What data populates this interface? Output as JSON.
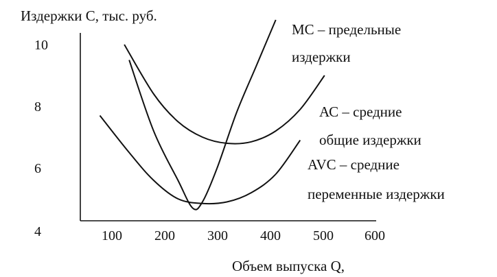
{
  "chart_data": {
    "type": "line",
    "ylabel": "Издержки С, тыс. руб.",
    "xlabel": "Объем выпуска Q,",
    "x_ticks": [
      "100",
      "200",
      "300",
      "400",
      "500",
      "600"
    ],
    "y_ticks": [
      "10",
      "8",
      "6",
      "4"
    ],
    "xlim": [
      0,
      600
    ],
    "ylim": [
      4,
      10
    ],
    "grid": false,
    "series": [
      {
        "name": "MC – предельные издержки",
        "label_lines": [
          "МС – предельные",
          "издержки"
        ],
        "x": [
          100,
          150,
          200,
          230,
          250,
          280,
          320,
          360,
          400
        ],
        "y": [
          9.5,
          7.2,
          5.6,
          4.7,
          4.9,
          6.0,
          7.8,
          9.3,
          10.8
        ]
      },
      {
        "name": "AC – средние общие издержки",
        "label_lines": [
          "АС – средние",
          "общие издержки"
        ],
        "x": [
          90,
          150,
          200,
          250,
          300,
          350,
          400,
          450,
          500
        ],
        "y": [
          10.0,
          8.4,
          7.5,
          7.0,
          6.8,
          6.85,
          7.2,
          7.9,
          9.0
        ]
      },
      {
        "name": "AVC – средние переменные издержки",
        "label_lines": [
          "AVC – средние",
          "переменные издержки"
        ],
        "x": [
          40,
          100,
          150,
          200,
          250,
          300,
          350,
          400,
          450
        ],
        "y": [
          7.7,
          6.5,
          5.6,
          5.0,
          4.85,
          4.9,
          5.2,
          5.8,
          6.9
        ]
      }
    ]
  }
}
